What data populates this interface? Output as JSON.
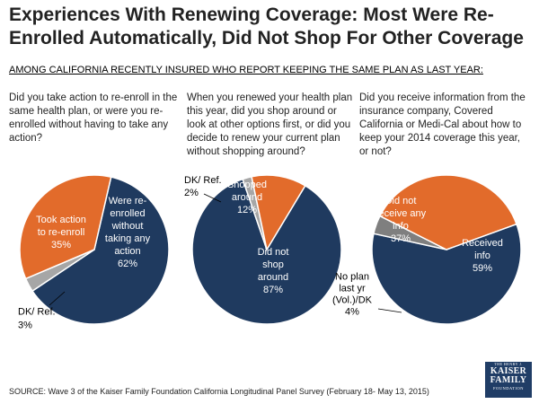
{
  "title": "Experiences With Renewing Coverage: Most Were Re-Enrolled Automatically, Did Not Shop For Other Coverage",
  "subtitle": "AMONG CALIFORNIA RECENTLY INSURED WHO REPORT KEEPING THE SAME PLAN AS LAST YEAR:",
  "questions": [
    "Did you take action to re-enroll in the same health plan, or were you re-enrolled without having to take any action?",
    "When you renewed your health plan this year, did you shop around or look at other options first, or did you decide to renew your current plan without shopping around?",
    "Did you receive information from the insurance company, Covered California or Medi-Cal about how to keep your 2014 coverage this year, or not?"
  ],
  "source": "SOURCE: Wave 3 of the Kaiser Family Foundation California Longitudinal Panel Survey (February 18- May 13, 2015)",
  "logo": {
    "line0": "THE HENRY J.",
    "line1": "KAISER",
    "line2": "FAMILY",
    "line3": "FOUNDATION"
  },
  "colors": {
    "navy": "#1f3a5f",
    "orange": "#e26b2b",
    "gray": "#a6a6a6",
    "darkgray": "#7f7f7f"
  },
  "chart_data": [
    {
      "type": "pie",
      "title": "Did you take action to re-enroll in the same health plan, or were you re-enrolled without having to take any action?",
      "slices": [
        {
          "label": [
            "Were re-",
            "enrolled",
            "without",
            "taking any",
            "action"
          ],
          "value": 62,
          "value_label": "62%",
          "color": "#1f3a5f"
        },
        {
          "label": [
            "DK/ Ref."
          ],
          "value": 3,
          "value_label": "3%",
          "color": "#a6a6a6"
        },
        {
          "label": [
            "Took action",
            "to re-enroll"
          ],
          "value": 35,
          "value_label": "35%",
          "color": "#e26b2b"
        }
      ]
    },
    {
      "type": "pie",
      "title": "When you renewed your health plan this year, did you shop around or look at other options first, or did you decide to renew your current plan without shopping around?",
      "slices": [
        {
          "label": [
            "Did not",
            "shop",
            "around"
          ],
          "value": 87,
          "value_label": "87%",
          "color": "#1f3a5f"
        },
        {
          "label": [
            "DK/ Ref."
          ],
          "value": 2,
          "value_label": "2%",
          "color": "#a6a6a6"
        },
        {
          "label": [
            "Shopped",
            "around"
          ],
          "value": 12,
          "value_label": "12%",
          "color": "#e26b2b"
        }
      ]
    },
    {
      "type": "pie",
      "title": "Did you receive information from the insurance company, Covered California or Medi-Cal about how to keep your 2014 coverage this year, or not?",
      "slices": [
        {
          "label": [
            "Received",
            "info"
          ],
          "value": 59,
          "value_label": "59%",
          "color": "#1f3a5f"
        },
        {
          "label": [
            "No plan",
            "last yr",
            "(Vol.)/DK"
          ],
          "value": 4,
          "value_label": "4%",
          "color": "#7f7f7f"
        },
        {
          "label": [
            "Did not",
            "receive any",
            "info"
          ],
          "value": 37,
          "value_label": "37%",
          "color": "#e26b2b"
        }
      ]
    }
  ]
}
